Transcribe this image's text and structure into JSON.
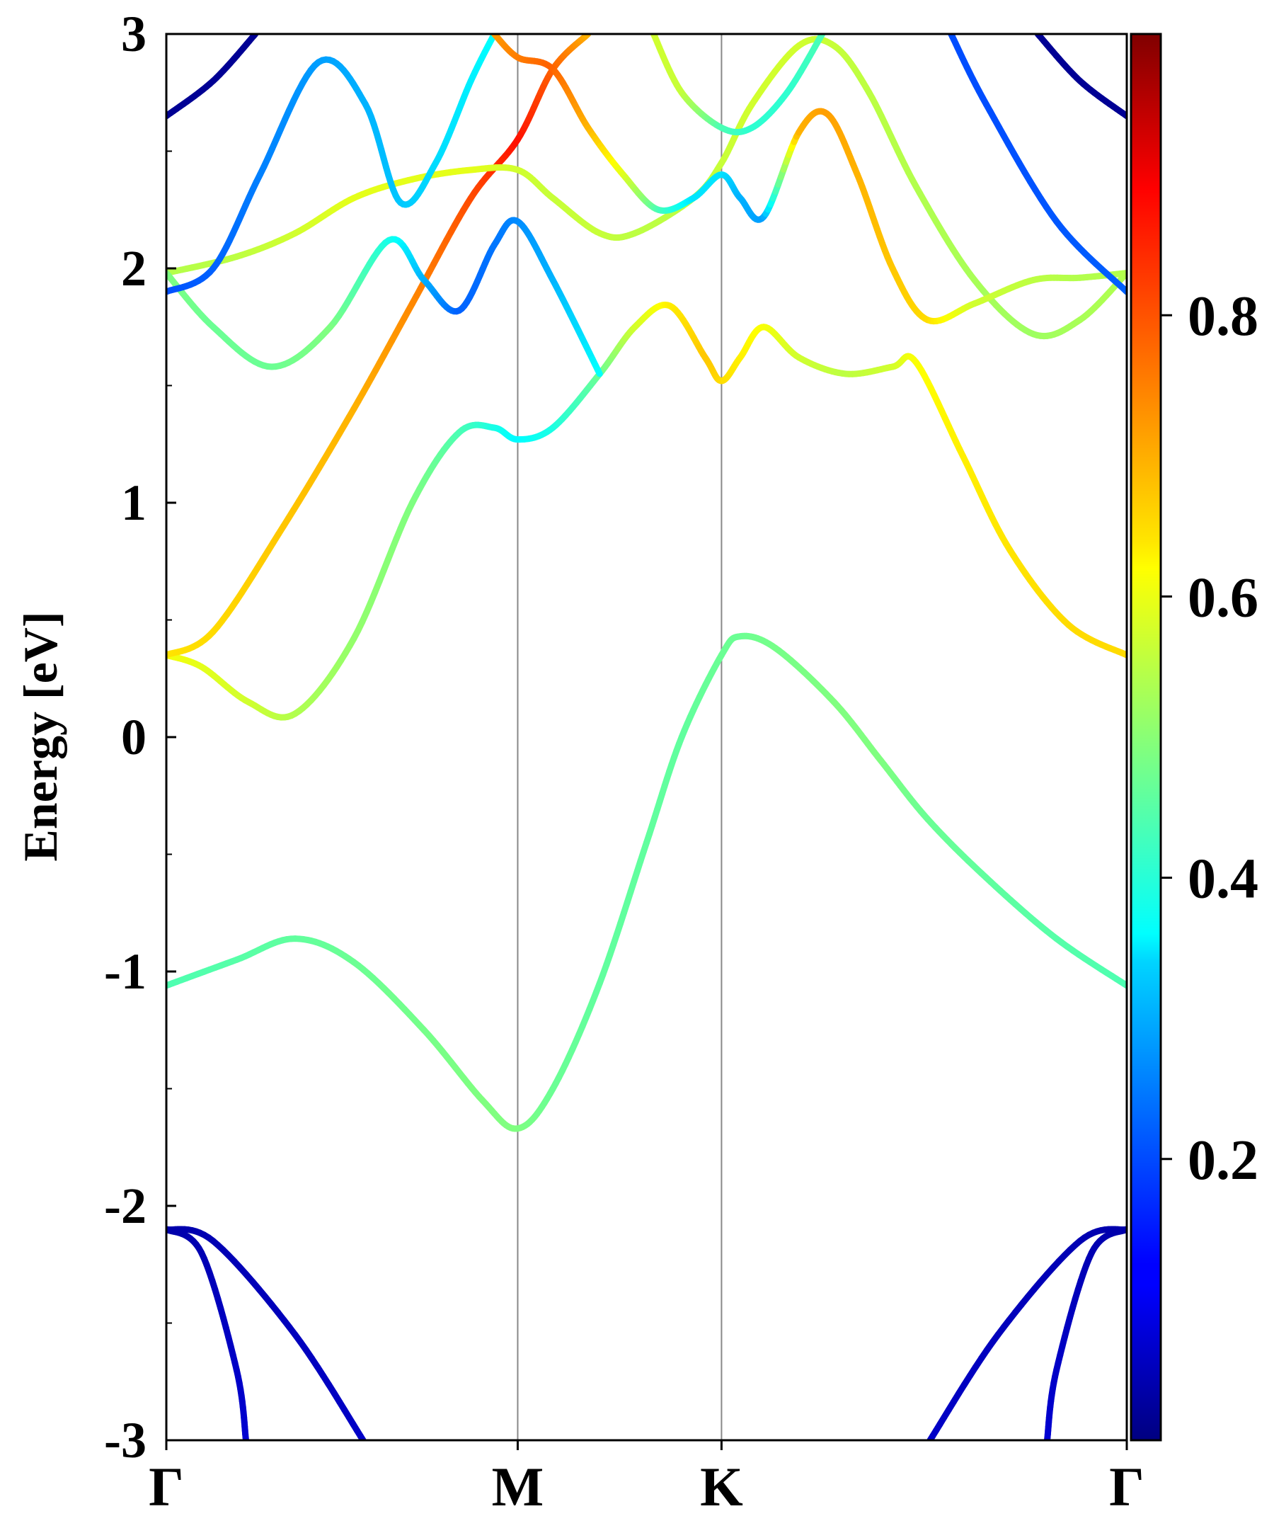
{
  "chart_data": {
    "type": "line",
    "title": "",
    "xlabel": "",
    "ylabel": "Energy [eV]",
    "ylim": [
      -3,
      3
    ],
    "y_ticks": [
      "-3",
      "-2",
      "-1",
      "0",
      "1",
      "2",
      "3"
    ],
    "x_ticks": [
      "Γ",
      "M",
      "K",
      "Γ"
    ],
    "x_tick_positions": [
      0,
      1.5,
      2.37,
      4.1
    ],
    "grid": false,
    "colormap": "jet",
    "colorbar": {
      "range": [
        0,
        1
      ],
      "tick_values": [
        0.2,
        0.4,
        0.6,
        0.8
      ],
      "tick_labels": [
        "0.2",
        "0.4",
        "0.6",
        "0.8"
      ]
    },
    "series": [
      {
        "points": [
          [
            0,
            -2.1
          ],
          [
            0.15,
            -2.2
          ],
          [
            0.3,
            -2.7
          ],
          [
            0.34,
            -3.0
          ]
        ],
        "weight": [
          0.04,
          0.05,
          0.07,
          0.08
        ]
      },
      {
        "points": [
          [
            0,
            -2.1
          ],
          [
            0.2,
            -2.15
          ],
          [
            0.55,
            -2.55
          ],
          [
            0.84,
            -3.0
          ]
        ],
        "weight": [
          0.04,
          0.05,
          0.06,
          0.07
        ]
      },
      {
        "points": [
          [
            4.1,
            -2.1
          ],
          [
            3.95,
            -2.2
          ],
          [
            3.8,
            -2.7
          ],
          [
            3.76,
            -3.0
          ]
        ],
        "weight": [
          0.04,
          0.05,
          0.07,
          0.08
        ]
      },
      {
        "points": [
          [
            4.1,
            -2.1
          ],
          [
            3.9,
            -2.15
          ],
          [
            3.55,
            -2.55
          ],
          [
            3.26,
            -3.0
          ]
        ],
        "weight": [
          0.04,
          0.05,
          0.06,
          0.07
        ]
      },
      {
        "points": [
          [
            0,
            -1.06
          ],
          [
            0.3,
            -0.95
          ],
          [
            0.55,
            -0.86
          ],
          [
            0.8,
            -0.96
          ],
          [
            1.1,
            -1.25
          ],
          [
            1.35,
            -1.55
          ],
          [
            1.5,
            -1.67
          ],
          [
            1.65,
            -1.5
          ],
          [
            1.85,
            -1.05
          ],
          [
            2.05,
            -0.45
          ],
          [
            2.2,
            0.0
          ],
          [
            2.37,
            0.35
          ],
          [
            2.45,
            0.43
          ],
          [
            2.6,
            0.38
          ],
          [
            2.85,
            0.15
          ],
          [
            3.05,
            -0.1
          ],
          [
            3.25,
            -0.35
          ],
          [
            3.5,
            -0.6
          ],
          [
            3.8,
            -0.86
          ],
          [
            4.1,
            -1.06
          ]
        ],
        "weight": [
          0.45,
          0.46,
          0.47,
          0.48,
          0.49,
          0.5,
          0.5,
          0.48,
          0.47,
          0.47,
          0.47,
          0.48,
          0.48,
          0.49,
          0.5,
          0.5,
          0.48,
          0.47,
          0.46,
          0.45
        ]
      },
      {
        "points": [
          [
            0,
            0.35
          ],
          [
            0.15,
            0.3
          ],
          [
            0.35,
            0.15
          ],
          [
            0.55,
            0.1
          ],
          [
            0.8,
            0.42
          ],
          [
            1.05,
            1.0
          ],
          [
            1.25,
            1.3
          ],
          [
            1.4,
            1.32
          ],
          [
            1.5,
            1.27
          ],
          [
            1.65,
            1.32
          ],
          [
            1.85,
            1.55
          ],
          [
            2.0,
            1.75
          ],
          [
            2.15,
            1.84
          ],
          [
            2.3,
            1.62
          ],
          [
            2.37,
            1.52
          ],
          [
            2.45,
            1.62
          ],
          [
            2.55,
            1.75
          ],
          [
            2.7,
            1.62
          ],
          [
            2.9,
            1.55
          ],
          [
            3.1,
            1.58
          ],
          [
            3.2,
            1.6
          ],
          [
            3.4,
            1.2
          ],
          [
            3.6,
            0.8
          ],
          [
            3.85,
            0.48
          ],
          [
            4.1,
            0.35
          ]
        ],
        "weight": [
          0.62,
          0.6,
          0.58,
          0.55,
          0.52,
          0.5,
          0.45,
          0.4,
          0.37,
          0.4,
          0.48,
          0.58,
          0.64,
          0.68,
          0.66,
          0.64,
          0.62,
          0.58,
          0.56,
          0.58,
          0.62,
          0.64,
          0.65,
          0.66,
          0.66
        ]
      },
      {
        "points": [
          [
            0,
            0.35
          ],
          [
            0.2,
            0.45
          ],
          [
            0.5,
            0.9
          ],
          [
            0.8,
            1.4
          ],
          [
            1.05,
            1.85
          ],
          [
            1.3,
            2.3
          ],
          [
            1.5,
            2.55
          ],
          [
            1.65,
            2.85
          ],
          [
            1.8,
            3.0
          ]
        ],
        "weight": [
          0.65,
          0.66,
          0.68,
          0.7,
          0.74,
          0.8,
          0.86,
          0.78,
          0.7
        ]
      },
      {
        "points": [
          [
            0,
            1.98
          ],
          [
            0.3,
            2.05
          ],
          [
            0.55,
            2.15
          ],
          [
            0.8,
            2.3
          ],
          [
            1.05,
            2.38
          ],
          [
            1.3,
            2.42
          ],
          [
            1.5,
            2.42
          ],
          [
            1.65,
            2.3
          ],
          [
            1.85,
            2.15
          ],
          [
            2.0,
            2.15
          ],
          [
            2.25,
            2.3
          ],
          [
            2.37,
            2.45
          ],
          [
            2.5,
            2.7
          ],
          [
            2.7,
            2.95
          ],
          [
            2.85,
            2.95
          ],
          [
            3.0,
            2.75
          ],
          [
            3.2,
            2.35
          ],
          [
            3.45,
            1.95
          ],
          [
            3.7,
            1.72
          ],
          [
            3.9,
            1.78
          ],
          [
            4.1,
            1.98
          ]
        ],
        "weight": [
          0.55,
          0.56,
          0.58,
          0.6,
          0.6,
          0.6,
          0.58,
          0.57,
          0.57,
          0.56,
          0.56,
          0.57,
          0.58,
          0.58,
          0.57,
          0.56,
          0.55,
          0.54,
          0.53,
          0.54,
          0.55
        ]
      },
      {
        "points": [
          [
            0,
            1.98
          ],
          [
            0.2,
            1.75
          ],
          [
            0.45,
            1.58
          ],
          [
            0.7,
            1.75
          ],
          [
            0.95,
            2.12
          ],
          [
            1.1,
            1.95
          ],
          [
            1.25,
            1.82
          ],
          [
            1.4,
            2.1
          ],
          [
            1.5,
            2.2
          ],
          [
            1.65,
            1.95
          ],
          [
            1.85,
            1.55
          ]
        ],
        "weight": [
          0.5,
          0.48,
          0.48,
          0.5,
          0.4,
          0.3,
          0.22,
          0.24,
          0.26,
          0.3,
          0.38
        ]
      },
      {
        "points": [
          [
            0,
            1.9
          ],
          [
            0.2,
            2.0
          ],
          [
            0.4,
            2.4
          ],
          [
            0.65,
            2.88
          ],
          [
            0.85,
            2.7
          ],
          [
            1.0,
            2.28
          ],
          [
            1.15,
            2.45
          ],
          [
            1.3,
            2.8
          ],
          [
            1.4,
            3.0
          ]
        ],
        "weight": [
          0.2,
          0.22,
          0.25,
          0.28,
          0.3,
          0.32,
          0.34,
          0.36,
          0.38
        ]
      },
      {
        "points": [
          [
            1.4,
            3.0
          ],
          [
            1.5,
            2.9
          ],
          [
            1.65,
            2.85
          ],
          [
            1.8,
            2.6
          ],
          [
            1.95,
            2.4
          ],
          [
            2.1,
            2.25
          ],
          [
            2.25,
            2.3
          ],
          [
            2.37,
            2.4
          ],
          [
            2.45,
            2.3
          ],
          [
            2.55,
            2.22
          ],
          [
            2.7,
            2.58
          ],
          [
            2.82,
            2.66
          ],
          [
            2.95,
            2.4
          ],
          [
            3.1,
            2.0
          ],
          [
            3.25,
            1.78
          ],
          [
            3.45,
            1.85
          ],
          [
            3.7,
            1.95
          ],
          [
            3.9,
            1.96
          ],
          [
            4.1,
            1.98
          ]
        ],
        "weight": [
          0.72,
          0.75,
          0.78,
          0.7,
          0.6,
          0.45,
          0.35,
          0.35,
          0.3,
          0.28,
          0.7,
          0.72,
          0.7,
          0.68,
          0.66,
          0.58,
          0.56,
          0.55,
          0.55
        ]
      },
      {
        "points": [
          [
            2.08,
            3.0
          ],
          [
            2.2,
            2.75
          ],
          [
            2.37,
            2.6
          ],
          [
            2.5,
            2.6
          ],
          [
            2.65,
            2.75
          ],
          [
            2.8,
            3.0
          ]
        ],
        "weight": [
          0.58,
          0.57,
          0.45,
          0.42,
          0.42,
          0.45
        ]
      },
      {
        "points": [
          [
            0,
            2.65
          ],
          [
            0.2,
            2.8
          ],
          [
            0.38,
            3.0
          ]
        ],
        "weight": [
          0.02,
          0.02,
          0.02
        ]
      },
      {
        "points": [
          [
            4.1,
            2.65
          ],
          [
            3.9,
            2.8
          ],
          [
            3.72,
            3.0
          ]
        ],
        "weight": [
          0.02,
          0.02,
          0.02
        ]
      },
      {
        "points": [
          [
            4.1,
            1.9
          ],
          [
            3.8,
            2.2
          ],
          [
            3.5,
            2.7
          ],
          [
            3.35,
            3.0
          ]
        ],
        "weight": [
          0.22,
          0.21,
          0.2,
          0.2
        ]
      }
    ]
  }
}
